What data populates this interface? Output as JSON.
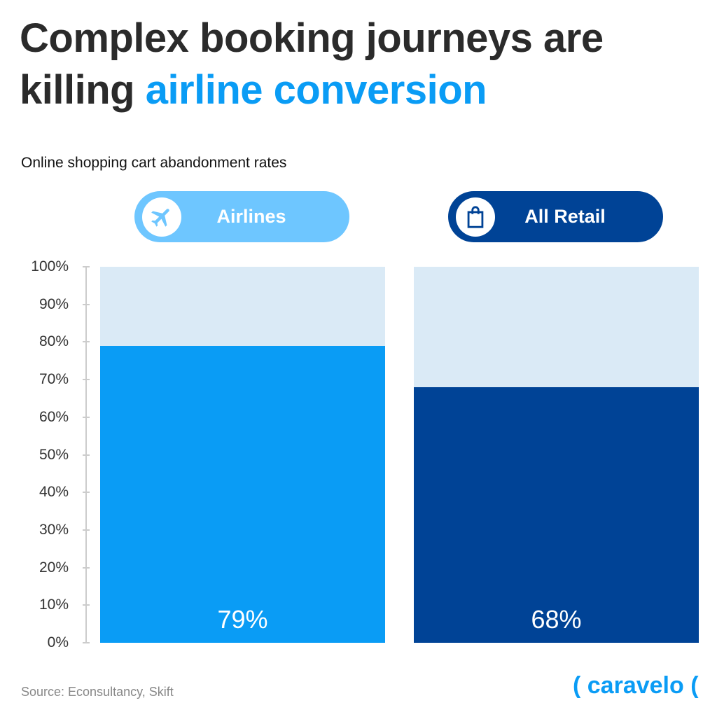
{
  "chart_data": {
    "type": "bar",
    "title_part1": "Complex booking journeys are",
    "title_part2": "killing ",
    "title_highlight": "airline conversion",
    "subtitle": "Online shopping cart abandonment rates",
    "categories": [
      "Airlines",
      "All Retail"
    ],
    "values": [
      79,
      68
    ],
    "data_labels": [
      "79%",
      "68%"
    ],
    "colors": [
      "#0a9cf5",
      "#004396"
    ],
    "pill_colors": [
      "#6ec6ff",
      "#004396"
    ],
    "background_color": "#daeaf6",
    "yticks": [
      "0%",
      "10%",
      "20%",
      "30%",
      "40%",
      "50%",
      "60%",
      "70%",
      "80%",
      "90%",
      "100%"
    ],
    "ylim": [
      0,
      100
    ],
    "icons": [
      "airplane-icon",
      "shopping-bag-icon"
    ]
  },
  "footer": {
    "source": "Source: Econsultancy, Skift",
    "logo": "( caravelo ("
  }
}
